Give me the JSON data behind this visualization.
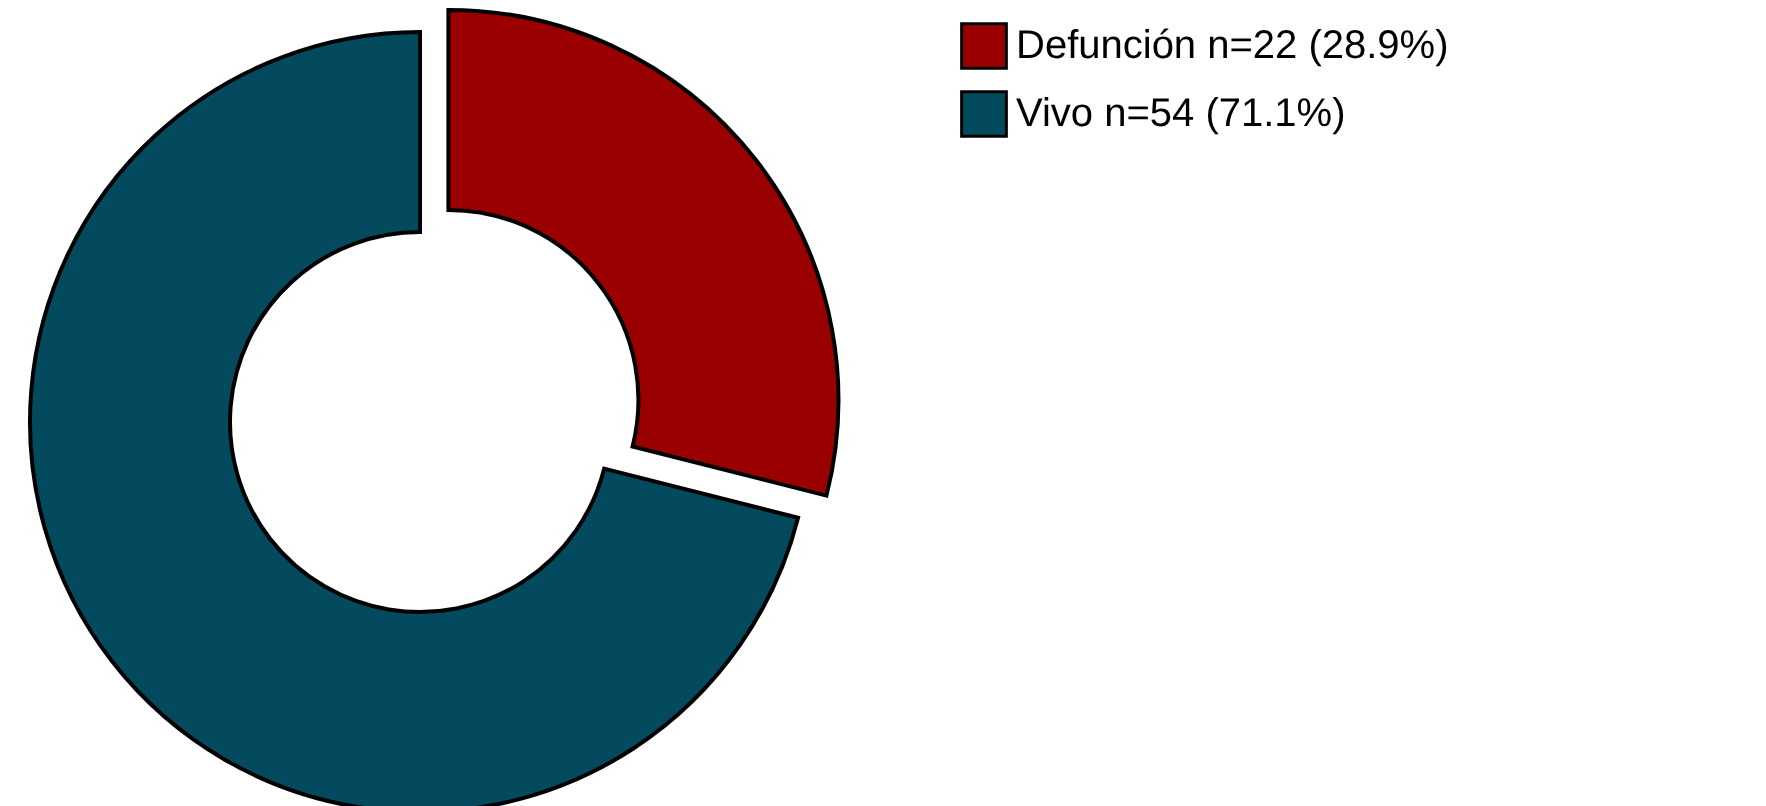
{
  "chart_data": {
    "type": "donut",
    "categories": [
      "Defunción n=22 (28.9%)",
      "Vivo n=54 (71.1%)"
    ],
    "values": [
      22,
      54
    ],
    "colors": [
      "#9b0000",
      "#044a5e"
    ],
    "legend": "top right"
  }
}
